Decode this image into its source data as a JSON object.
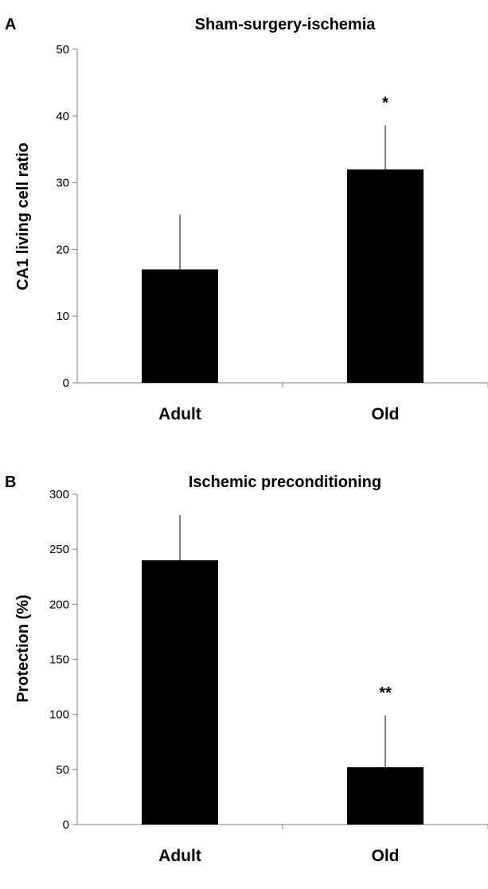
{
  "chart_data": [
    {
      "panel": "A",
      "type": "bar",
      "title": "Sham-surgery-ischemia",
      "xlabel": "",
      "ylabel": "CA1 living cell ratio",
      "ylim": [
        0,
        50
      ],
      "yticks": [
        0,
        10,
        20,
        30,
        40,
        50
      ],
      "categories": [
        "Adult",
        "Old"
      ],
      "values": [
        17,
        32
      ],
      "error_upper": [
        8.2,
        6.6
      ],
      "annotations": [
        "",
        "*"
      ],
      "bar_color": "#000000"
    },
    {
      "panel": "B",
      "type": "bar",
      "title": "Ischemic preconditioning",
      "xlabel": "",
      "ylabel": "Protection (%)",
      "ylim": [
        0,
        300
      ],
      "yticks": [
        0,
        50,
        100,
        150,
        200,
        250,
        300
      ],
      "categories": [
        "Adult",
        "Old"
      ],
      "values": [
        240,
        52
      ],
      "error_upper": [
        41,
        47
      ],
      "annotations": [
        "",
        "**"
      ],
      "bar_color": "#000000"
    }
  ]
}
